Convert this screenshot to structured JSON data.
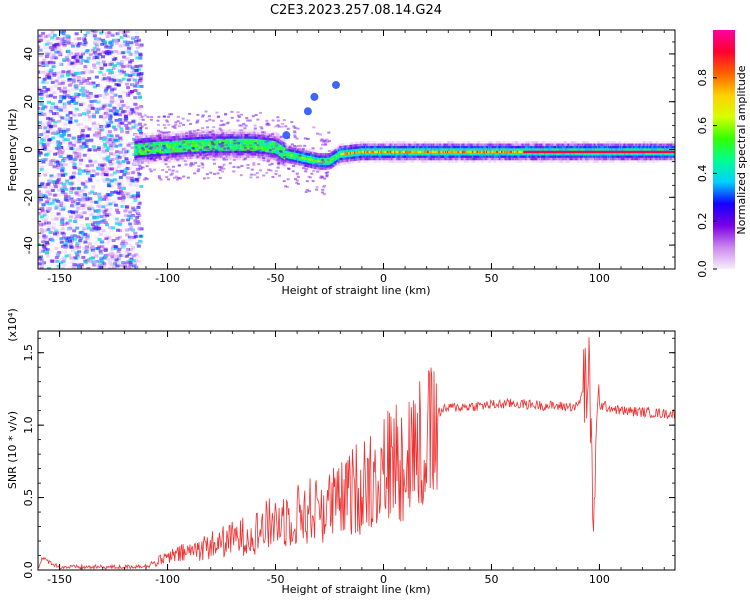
{
  "title": "C2E3.2023.257.08.14.G24",
  "chart_data": [
    {
      "type": "heatmap",
      "title": "C2E3.2023.257.08.14.G24",
      "xlabel": "Height of straight line (km)",
      "ylabel": "Frequency (Hz)",
      "xlim": [
        -160,
        135
      ],
      "ylim": [
        -50,
        50
      ],
      "x_ticks": [
        -150,
        -100,
        -50,
        0,
        50,
        100
      ],
      "y_ticks": [
        40,
        20,
        0,
        -20,
        -40
      ],
      "colorbar": {
        "label": "Normalized spectral amplitude",
        "range": [
          0,
          1
        ],
        "ticks": [
          0.0,
          0.2,
          0.4,
          0.6,
          0.8
        ],
        "colors": [
          "#f7eefc",
          "#cc88ee",
          "#7a00e6",
          "#1400ff",
          "#00d0ff",
          "#00ff90",
          "#33ff00",
          "#d6ff00",
          "#ffd000",
          "#ff6000",
          "#ff0030",
          "#ff00a0"
        ]
      },
      "trace": {
        "x": [
          -115,
          -100,
          -80,
          -60,
          -50,
          -45,
          -40,
          -35,
          -30,
          -25,
          -20,
          -10,
          0,
          20,
          50,
          80,
          100,
          120,
          135
        ],
        "freq": [
          0,
          1,
          2,
          2,
          1,
          -2,
          -3,
          -4,
          -5,
          -5,
          -2,
          -1,
          -1,
          -1,
          -1,
          -1,
          -1,
          -1,
          -1
        ]
      },
      "noise_region_x": [
        -160,
        -112
      ],
      "blips": [
        {
          "x": -35,
          "y": 16
        },
        {
          "x": -45,
          "y": 6
        },
        {
          "x": -32,
          "y": 22
        },
        {
          "x": -22,
          "y": 27
        }
      ]
    },
    {
      "type": "line",
      "xlabel": "Height of straight line (km)",
      "ylabel": "SNR (10 * v/v)",
      "scale_label": "(x10⁴)",
      "xlim": [
        -160,
        135
      ],
      "ylim": [
        0,
        1.65
      ],
      "x_ticks": [
        -150,
        -100,
        -50,
        0,
        50,
        100
      ],
      "y_ticks": [
        0.0,
        0.5,
        1.0,
        1.5
      ],
      "line_color": "#ee3030",
      "envelope": {
        "x": [
          -160,
          -158,
          -150,
          -120,
          -110,
          -100,
          -90,
          -80,
          -70,
          -60,
          -50,
          -40,
          -30,
          -20,
          -10,
          0,
          10,
          20,
          30,
          40,
          50,
          60,
          70,
          80,
          90,
          95,
          97,
          100,
          110,
          120,
          130,
          135
        ],
        "y": [
          0.02,
          0.08,
          0.02,
          0.02,
          0.03,
          0.1,
          0.15,
          0.2,
          0.25,
          0.3,
          0.4,
          0.45,
          0.5,
          0.55,
          0.7,
          0.82,
          0.95,
          1.05,
          1.12,
          1.13,
          1.14,
          1.15,
          1.14,
          1.13,
          1.13,
          1.35,
          0.45,
          1.14,
          1.1,
          1.09,
          1.08,
          1.08
        ]
      }
    }
  ]
}
